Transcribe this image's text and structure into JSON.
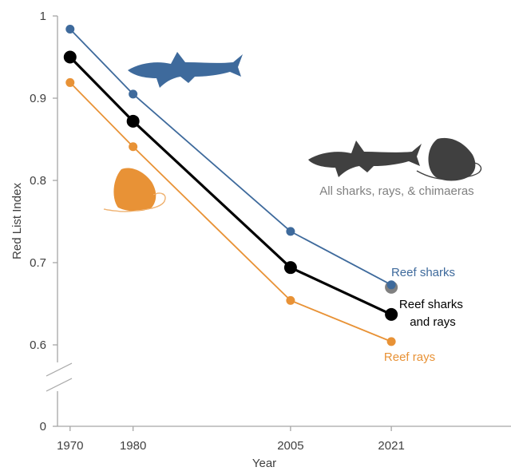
{
  "chart_data": {
    "type": "line",
    "xlabel": "Year",
    "ylabel": "Red List Index",
    "x": [
      1970,
      1980,
      2005,
      2021
    ],
    "x_ticks": [
      "1970",
      "1980",
      "2005",
      "2021"
    ],
    "xlim": [
      1968,
      2040
    ],
    "y_ticks": [
      "0",
      "0.6",
      "0.7",
      "0.8",
      "0.9",
      "1"
    ],
    "ylim_upper": [
      0.6,
      1.0
    ],
    "axis_break": "between 0 and 0.6",
    "grid": false,
    "series": [
      {
        "name": "Reef sharks",
        "values": [
          0.984,
          0.905,
          0.738,
          0.673
        ],
        "color": "#3e6a9c"
      },
      {
        "name": "Reef sharks and rays",
        "label_lines": [
          "Reef sharks",
          "and rays"
        ],
        "values": [
          0.95,
          0.872,
          0.694,
          0.637
        ],
        "color": "#000000"
      },
      {
        "name": "Reef rays",
        "values": [
          0.919,
          0.841,
          0.654,
          0.604
        ],
        "color": "#e89236"
      }
    ],
    "reference_point": {
      "name": "All sharks, rays, & chimaeras",
      "x": 2021,
      "y": 0.67,
      "color": "#808080"
    },
    "icons": [
      "blue-shark-icon",
      "orange-ray-icon",
      "dark-shark-icon",
      "dark-ray-icon"
    ]
  }
}
